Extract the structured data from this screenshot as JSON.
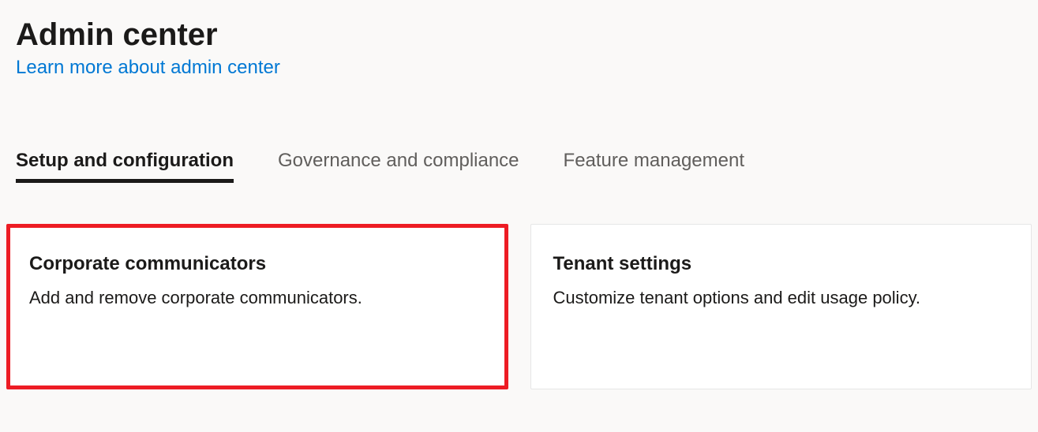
{
  "header": {
    "title": "Admin center",
    "subtitle_link": "Learn more about admin center"
  },
  "tabs": [
    {
      "label": "Setup and configuration",
      "active": true
    },
    {
      "label": "Governance and compliance",
      "active": false
    },
    {
      "label": "Feature management",
      "active": false
    }
  ],
  "cards": [
    {
      "title": "Corporate communicators",
      "description": "Add and remove corporate communicators.",
      "highlighted": true
    },
    {
      "title": "Tenant settings",
      "description": "Customize tenant options and edit usage policy.",
      "highlighted": false
    }
  ],
  "colors": {
    "background": "#faf9f8",
    "card_background": "#ffffff",
    "text_primary": "#1b1a19",
    "text_secondary": "#605e5c",
    "link": "#0078d4",
    "highlight_border": "#ed1c24",
    "card_border": "#e6e6e6",
    "tab_underline": "#1b1a19"
  }
}
